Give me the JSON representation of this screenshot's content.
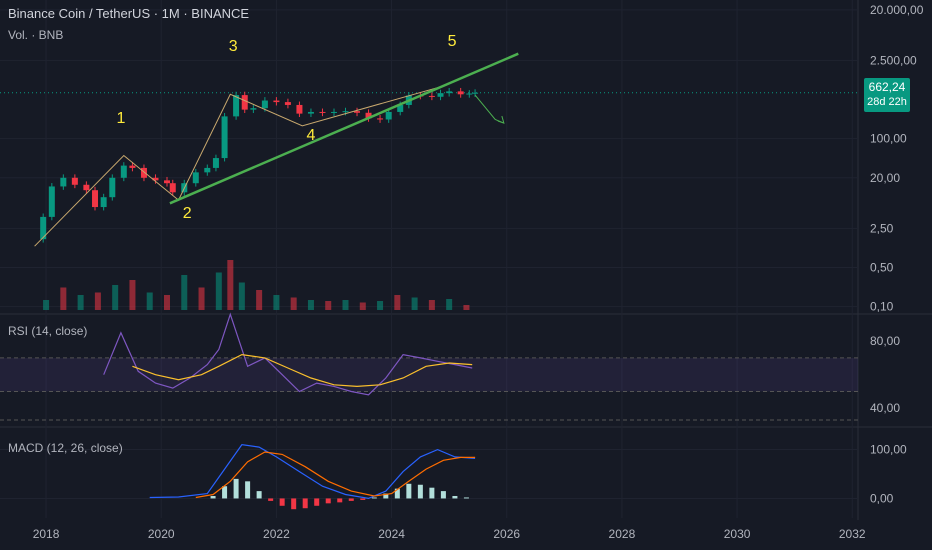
{
  "header": {
    "symbol": "Binance Coin / TetherUS · 1M · BINANCE",
    "volume_label": "Vol. · BNB"
  },
  "price_tag": {
    "price": "662,24",
    "countdown": "28d 22h"
  },
  "panes": {
    "rsi_label": "RSI (14, close)",
    "macd_label": "MACD (12, 26, close)"
  },
  "colors": {
    "background": "#161a25",
    "up": "#089981",
    "down": "#f23645",
    "trendline": "#4caf50",
    "wave_labels": "#ffeb3b",
    "rsi_line": "#7e57c2",
    "rsi_ma": "#fbc02d",
    "macd_line": "#2962ff",
    "signal_line": "#ff6d00"
  },
  "chart_data": [
    {
      "type": "line",
      "name": "price",
      "scale": "log",
      "y_ticks": [
        "20.000,00",
        "2.500,00",
        "100,00",
        "20,00",
        "2,50",
        "0,50",
        "0,10"
      ],
      "y_tick_values": [
        20000,
        2500,
        100,
        20,
        2.5,
        0.5,
        0.1
      ],
      "x_ticks": [
        "2018",
        "2020",
        "2022",
        "2024",
        "2026",
        "2028",
        "2030",
        "2032"
      ],
      "x_tick_values": [
        2018,
        2020,
        2022,
        2024,
        2026,
        2028,
        2030,
        2032
      ],
      "xlim": [
        2017.2,
        2032.1
      ],
      "ylim": [
        0.08,
        30000
      ],
      "price_points": [
        [
          2017.8,
          1.6
        ],
        [
          2017.95,
          4
        ],
        [
          2018.1,
          14
        ],
        [
          2018.3,
          20
        ],
        [
          2018.5,
          15
        ],
        [
          2018.7,
          12
        ],
        [
          2018.85,
          6
        ],
        [
          2019.0,
          9
        ],
        [
          2019.15,
          20
        ],
        [
          2019.35,
          33
        ],
        [
          2019.5,
          30
        ],
        [
          2019.7,
          20
        ],
        [
          2019.9,
          18
        ],
        [
          2020.1,
          16
        ],
        [
          2020.2,
          11
        ],
        [
          2020.4,
          16
        ],
        [
          2020.6,
          25
        ],
        [
          2020.8,
          30
        ],
        [
          2020.95,
          45
        ],
        [
          2021.1,
          250
        ],
        [
          2021.3,
          600
        ],
        [
          2021.45,
          330
        ],
        [
          2021.6,
          350
        ],
        [
          2021.8,
          480
        ],
        [
          2022.0,
          450
        ],
        [
          2022.2,
          400
        ],
        [
          2022.4,
          280
        ],
        [
          2022.6,
          300
        ],
        [
          2022.8,
          290
        ],
        [
          2023.0,
          300
        ],
        [
          2023.2,
          310
        ],
        [
          2023.4,
          290
        ],
        [
          2023.6,
          230
        ],
        [
          2023.8,
          220
        ],
        [
          2023.95,
          300
        ],
        [
          2024.15,
          400
        ],
        [
          2024.3,
          590
        ],
        [
          2024.5,
          580
        ],
        [
          2024.7,
          560
        ],
        [
          2024.85,
          650
        ],
        [
          2025.0,
          700
        ],
        [
          2025.2,
          620
        ],
        [
          2025.35,
          640
        ],
        [
          2025.45,
          662.24
        ]
      ],
      "wave_labels": [
        {
          "text": "1",
          "x": 2019.3,
          "y": 190
        },
        {
          "text": "2",
          "x": 2020.45,
          "y": 3.8
        },
        {
          "text": "3",
          "x": 2021.25,
          "y": 3700
        },
        {
          "text": "4",
          "x": 2022.6,
          "y": 95
        },
        {
          "text": "5",
          "x": 2025.05,
          "y": 4500
        }
      ],
      "trendline": [
        [
          2020.15,
          7
        ],
        [
          2026.2,
          3300
        ]
      ],
      "wave_path": [
        [
          2017.8,
          1.2
        ],
        [
          2019.35,
          50
        ],
        [
          2020.3,
          8
        ],
        [
          2021.2,
          620
        ],
        [
          2022.45,
          170
        ],
        [
          2024.95,
          900
        ]
      ],
      "projection": [
        [
          2025.45,
          600
        ],
        [
          2025.8,
          220
        ],
        [
          2025.95,
          190
        ]
      ]
    },
    {
      "type": "bar",
      "name": "volume",
      "x": [
        2018.0,
        2018.3,
        2018.6,
        2018.9,
        2019.2,
        2019.5,
        2019.8,
        2020.1,
        2020.4,
        2020.7,
        2021.0,
        2021.2,
        2021.4,
        2021.7,
        2022.0,
        2022.3,
        2022.6,
        2022.9,
        2023.2,
        2023.5,
        2023.8,
        2024.1,
        2024.4,
        2024.7,
        2025.0,
        2025.3
      ],
      "values": [
        0.2,
        0.45,
        0.3,
        0.35,
        0.5,
        0.6,
        0.35,
        0.3,
        0.7,
        0.45,
        0.75,
        1.0,
        0.55,
        0.4,
        0.3,
        0.25,
        0.2,
        0.18,
        0.2,
        0.15,
        0.18,
        0.3,
        0.25,
        0.2,
        0.22,
        0.1
      ]
    },
    {
      "type": "line",
      "name": "RSI",
      "y_ticks": [
        "80,00",
        "40,00"
      ],
      "y_tick_values": [
        80,
        40
      ],
      "ylim": [
        30,
        95
      ],
      "rsi": [
        [
          2019.0,
          60
        ],
        [
          2019.3,
          85
        ],
        [
          2019.6,
          62
        ],
        [
          2019.9,
          55
        ],
        [
          2020.2,
          52
        ],
        [
          2020.5,
          58
        ],
        [
          2020.8,
          66
        ],
        [
          2021.0,
          75
        ],
        [
          2021.2,
          96
        ],
        [
          2021.5,
          65
        ],
        [
          2021.8,
          70
        ],
        [
          2022.1,
          60
        ],
        [
          2022.4,
          50
        ],
        [
          2022.7,
          55
        ],
        [
          2023.0,
          53
        ],
        [
          2023.3,
          50
        ],
        [
          2023.6,
          48
        ],
        [
          2023.9,
          58
        ],
        [
          2024.2,
          72
        ],
        [
          2024.5,
          70
        ],
        [
          2024.8,
          68
        ],
        [
          2025.1,
          66
        ],
        [
          2025.4,
          64
        ]
      ],
      "rsi_ma": [
        [
          2019.5,
          65
        ],
        [
          2019.9,
          60
        ],
        [
          2020.3,
          57
        ],
        [
          2020.7,
          60
        ],
        [
          2021.0,
          65
        ],
        [
          2021.4,
          72
        ],
        [
          2021.8,
          70
        ],
        [
          2022.2,
          64
        ],
        [
          2022.6,
          58
        ],
        [
          2023.0,
          54
        ],
        [
          2023.4,
          53
        ],
        [
          2023.8,
          54
        ],
        [
          2024.2,
          58
        ],
        [
          2024.6,
          65
        ],
        [
          2025.0,
          67
        ],
        [
          2025.4,
          66
        ]
      ]
    },
    {
      "type": "line",
      "name": "MACD",
      "y_ticks": [
        "100,00",
        "0,00"
      ],
      "y_tick_values": [
        100,
        0
      ],
      "ylim": [
        -40,
        140
      ],
      "macd": [
        [
          2019.8,
          2
        ],
        [
          2020.3,
          3
        ],
        [
          2020.8,
          10
        ],
        [
          2021.1,
          60
        ],
        [
          2021.4,
          110
        ],
        [
          2021.7,
          105
        ],
        [
          2022.0,
          85
        ],
        [
          2022.4,
          55
        ],
        [
          2022.8,
          25
        ],
        [
          2023.2,
          8
        ],
        [
          2023.6,
          0
        ],
        [
          2023.9,
          15
        ],
        [
          2024.2,
          55
        ],
        [
          2024.5,
          85
        ],
        [
          2024.8,
          100
        ],
        [
          2025.1,
          85
        ],
        [
          2025.45,
          82
        ]
      ],
      "signal": [
        [
          2020.6,
          2
        ],
        [
          2020.9,
          8
        ],
        [
          2021.2,
          35
        ],
        [
          2021.5,
          75
        ],
        [
          2021.8,
          95
        ],
        [
          2022.1,
          90
        ],
        [
          2022.5,
          65
        ],
        [
          2022.9,
          35
        ],
        [
          2023.3,
          15
        ],
        [
          2023.7,
          5
        ],
        [
          2024.0,
          10
        ],
        [
          2024.3,
          35
        ],
        [
          2024.6,
          60
        ],
        [
          2024.9,
          78
        ],
        [
          2025.2,
          84
        ],
        [
          2025.45,
          84
        ]
      ],
      "histogram": [
        [
          2020.9,
          5
        ],
        [
          2021.1,
          25
        ],
        [
          2021.3,
          40
        ],
        [
          2021.5,
          35
        ],
        [
          2021.7,
          15
        ],
        [
          2021.9,
          -5
        ],
        [
          2022.1,
          -15
        ],
        [
          2022.3,
          -22
        ],
        [
          2022.5,
          -20
        ],
        [
          2022.7,
          -15
        ],
        [
          2022.9,
          -10
        ],
        [
          2023.1,
          -8
        ],
        [
          2023.3,
          -5
        ],
        [
          2023.5,
          -3
        ],
        [
          2023.7,
          2
        ],
        [
          2023.9,
          10
        ],
        [
          2024.1,
          20
        ],
        [
          2024.3,
          30
        ],
        [
          2024.5,
          28
        ],
        [
          2024.7,
          22
        ],
        [
          2024.9,
          15
        ],
        [
          2025.1,
          5
        ],
        [
          2025.3,
          2
        ]
      ]
    }
  ]
}
